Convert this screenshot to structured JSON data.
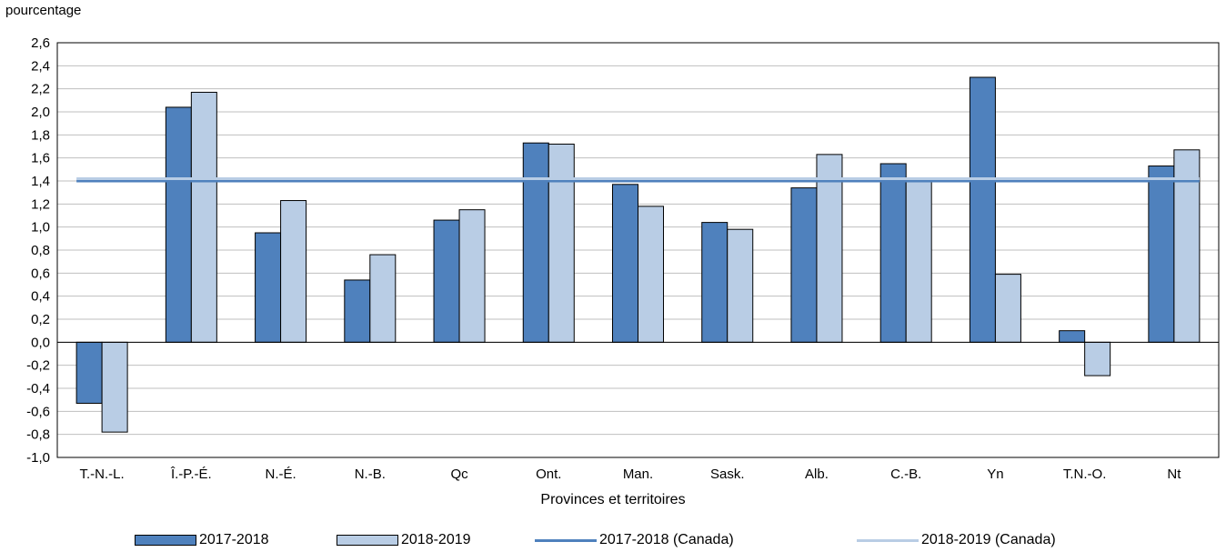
{
  "chart_data": {
    "type": "bar",
    "ylabel": "pourcentage",
    "xlabel": "Provinces et territoires",
    "ylim": [
      -1.0,
      2.6
    ],
    "ytick_step": 0.2,
    "grid": true,
    "legend_position": "bottom",
    "categories": [
      "T.-N.-L.",
      "Î.-P.-É.",
      "N.-É.",
      "N.-B.",
      "Qc",
      "Ont.",
      "Man.",
      "Sask.",
      "Alb.",
      "C.-B.",
      "Yn",
      "T.N.-O.",
      "Nt"
    ],
    "series": [
      {
        "name": "2017-2018",
        "color": "#4f81bd",
        "values": [
          -0.53,
          2.04,
          0.95,
          0.54,
          1.06,
          1.73,
          1.37,
          1.04,
          1.34,
          1.55,
          2.3,
          0.1,
          1.53
        ]
      },
      {
        "name": "2018-2019",
        "color": "#b9cde5",
        "values": [
          -0.78,
          2.17,
          1.23,
          0.76,
          1.15,
          1.72,
          1.18,
          0.98,
          1.63,
          1.4,
          0.59,
          -0.29,
          1.67
        ]
      }
    ],
    "reference_lines": [
      {
        "name": "2017-2018 (Canada)",
        "value": 1.4,
        "color": "#4f81bd"
      },
      {
        "name": "2018-2019 (Canada)",
        "value": 1.42,
        "color": "#b9cde5"
      }
    ]
  }
}
